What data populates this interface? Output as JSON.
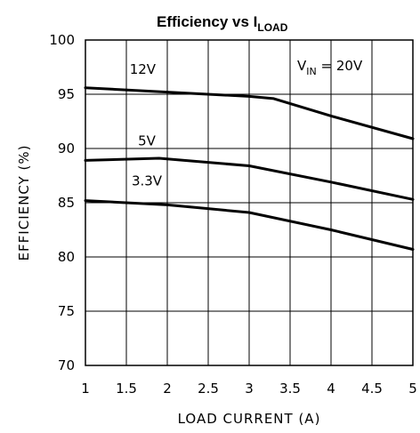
{
  "chart_data": {
    "type": "line",
    "title": "Efficiency vs I",
    "title_subscript": "LOAD",
    "xlabel": "LOAD CURRENT (A)",
    "ylabel": "EFFICIENCY (%)",
    "xlim": [
      1,
      5
    ],
    "ylim": [
      70,
      100
    ],
    "xticks": [
      1,
      1.5,
      2,
      2.5,
      3,
      3.5,
      4,
      4.5,
      5
    ],
    "yticks": [
      70,
      75,
      80,
      85,
      90,
      95,
      100
    ],
    "x_tick_labels": [
      "1",
      "1.5",
      "2",
      "2.5",
      "3",
      "3.5",
      "4",
      "4.5",
      "5"
    ],
    "y_tick_labels": [
      "70",
      "75",
      "80",
      "85",
      "90",
      "95",
      "100"
    ],
    "grid": true,
    "annotation": {
      "main": "V",
      "sub": "IN",
      "rest": " = 20V"
    },
    "series": [
      {
        "name": "12V",
        "x": [
          1,
          2,
          3,
          3.3,
          4,
          5
        ],
        "y": [
          95.6,
          95.2,
          94.8,
          94.6,
          93.0,
          90.9
        ]
      },
      {
        "name": "5V",
        "x": [
          1,
          1.9,
          3,
          4,
          5
        ],
        "y": [
          88.9,
          89.1,
          88.4,
          86.9,
          85.3
        ]
      },
      {
        "name": "3.3V",
        "x": [
          1,
          2,
          3,
          4,
          5
        ],
        "y": [
          85.2,
          84.8,
          84.1,
          82.5,
          80.7
        ]
      }
    ]
  }
}
